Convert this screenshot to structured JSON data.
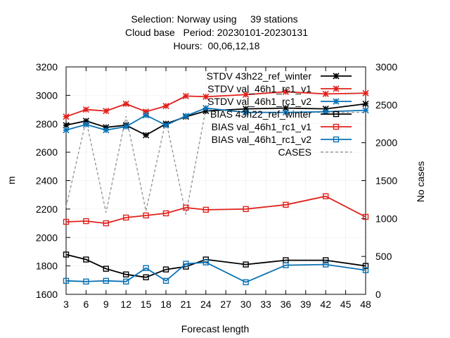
{
  "chart_data": {
    "type": "line",
    "title_lines": [
      "Selection: Norway using     39 stations",
      "Cloud base   Period: 20230101-20230131",
      "Hours:  00,06,12,18"
    ],
    "xlabel": "Forecast length",
    "ylabel": "m",
    "y2label": "No cases",
    "x_ticks": [
      "3",
      "6",
      "9",
      "12",
      "15",
      "18",
      "21",
      "24",
      "27",
      "30",
      "33",
      "36",
      "39",
      "42",
      "45",
      "48"
    ],
    "xlim": [
      3,
      48
    ],
    "y_ticks": [
      "1600",
      "1800",
      "2000",
      "2200",
      "2400",
      "2600",
      "2800",
      "3000",
      "3200"
    ],
    "ylim": [
      1600,
      3200
    ],
    "y2_ticks": [
      "0",
      "500",
      "1000",
      "1500",
      "2000",
      "2500",
      "3000"
    ],
    "y2lim": [
      0,
      3000
    ],
    "grid": true,
    "legend_position": "top-right",
    "series": [
      {
        "name": "STDV 43h22_ref_winter",
        "axis": "y1",
        "marker": "star",
        "color": "#000000",
        "x": [
          3,
          6,
          9,
          12,
          15,
          18,
          21,
          24,
          30,
          36,
          42,
          48
        ],
        "y": [
          2790,
          2820,
          2775,
          2790,
          2720,
          2800,
          2850,
          2890,
          2905,
          2910,
          2905,
          2940
        ]
      },
      {
        "name": "STDV val_46h1_rc1_v1",
        "axis": "y1",
        "marker": "star",
        "color": "#e0201b",
        "x": [
          3,
          6,
          9,
          12,
          15,
          18,
          21,
          24,
          30,
          36,
          42,
          48
        ],
        "y": [
          2850,
          2900,
          2890,
          2940,
          2885,
          2925,
          2995,
          2990,
          3005,
          3025,
          3010,
          3015
        ]
      },
      {
        "name": "STDV val_46h1_rc1_v2",
        "axis": "y1",
        "marker": "star",
        "color": "#0a72b4",
        "x": [
          3,
          6,
          9,
          12,
          15,
          18,
          21,
          24,
          30,
          36,
          42,
          48
        ],
        "y": [
          2755,
          2795,
          2755,
          2780,
          2860,
          2790,
          2855,
          2910,
          2880,
          2880,
          2885,
          2895
        ]
      },
      {
        "name": "BIAS 43h22_ref_winter",
        "axis": "y1",
        "marker": "square",
        "color": "#000000",
        "x": [
          3,
          6,
          9,
          12,
          15,
          18,
          21,
          24,
          30,
          36,
          42,
          48
        ],
        "y": [
          1880,
          1845,
          1780,
          1740,
          1720,
          1775,
          1795,
          1845,
          1810,
          1840,
          1840,
          1800
        ]
      },
      {
        "name": "BIAS val_46h1_rc1_v1",
        "axis": "y1",
        "marker": "square",
        "color": "#e0201b",
        "x": [
          3,
          6,
          9,
          12,
          15,
          18,
          21,
          24,
          30,
          36,
          42,
          48
        ],
        "y": [
          2110,
          2115,
          2100,
          2140,
          2155,
          2170,
          2210,
          2195,
          2200,
          2230,
          2290,
          2145
        ]
      },
      {
        "name": "BIAS val_46h1_rc1_v2",
        "axis": "y1",
        "marker": "square",
        "color": "#0a72b4",
        "x": [
          3,
          6,
          9,
          12,
          15,
          18,
          21,
          24,
          30,
          36,
          42,
          48
        ],
        "y": [
          1695,
          1690,
          1695,
          1690,
          1785,
          1695,
          1815,
          1825,
          1685,
          1805,
          1810,
          1770
        ]
      },
      {
        "name": "CASES",
        "axis": "y2",
        "marker": "none",
        "color": "#999999",
        "dashed": true,
        "x": [
          3,
          6,
          9,
          12,
          15,
          18,
          21,
          24,
          30,
          36,
          42,
          48
        ],
        "y": [
          1150,
          2300,
          1080,
          2350,
          1100,
          2300,
          1050,
          2450,
          2400,
          2400,
          2400,
          2400
        ]
      }
    ]
  }
}
